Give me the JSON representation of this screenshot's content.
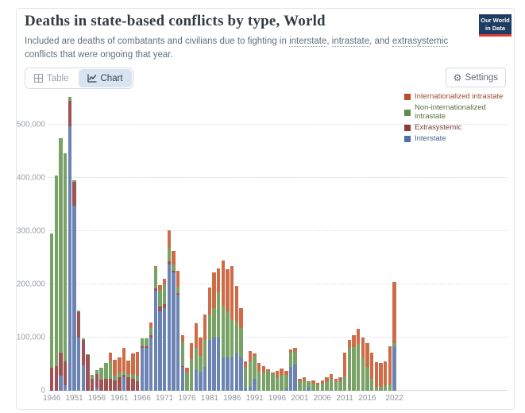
{
  "header": {
    "title": "Deaths in state-based conflicts by type, World",
    "subtitle": {
      "t1": "Included are deaths of combatants and civilians due to fighting in ",
      "link1": "interstate",
      "t2": ", ",
      "link2": "intrastate",
      "t3": ", and ",
      "link3": "extrasystemic",
      "t4": " conflicts that were ongoing that year."
    }
  },
  "logo": {
    "line1": "Our World",
    "line2": "in Data"
  },
  "toolbar": {
    "table_label": "Table",
    "chart_label": "Chart",
    "settings_label": "Settings"
  },
  "chart_data": {
    "type": "bar",
    "stacked": true,
    "title": "Deaths in state-based conflicts by type, World",
    "xlabel": "",
    "ylabel": "",
    "grid": "horizontal-dotted",
    "legend_position": "top-right",
    "ylim": [
      0,
      560000
    ],
    "ytick_values": [
      0,
      100000,
      200000,
      300000,
      400000,
      500000
    ],
    "ytick_labels": [
      "0",
      "100,000",
      "200,000",
      "300,000",
      "400,000",
      "500,000"
    ],
    "xtick_values": [
      1946,
      1951,
      1956,
      1961,
      1966,
      1971,
      1976,
      1981,
      1986,
      1991,
      1996,
      2001,
      2006,
      2011,
      2016,
      2022
    ],
    "years": [
      1946,
      1947,
      1948,
      1949,
      1950,
      1951,
      1952,
      1953,
      1954,
      1955,
      1956,
      1957,
      1958,
      1959,
      1960,
      1961,
      1962,
      1963,
      1964,
      1965,
      1966,
      1967,
      1968,
      1969,
      1970,
      1971,
      1972,
      1973,
      1974,
      1975,
      1976,
      1977,
      1978,
      1979,
      1980,
      1981,
      1982,
      1983,
      1984,
      1985,
      1986,
      1987,
      1988,
      1989,
      1990,
      1991,
      1992,
      1993,
      1994,
      1995,
      1996,
      1997,
      1998,
      1999,
      2000,
      2001,
      2002,
      2003,
      2004,
      2005,
      2006,
      2007,
      2008,
      2009,
      2010,
      2011,
      2012,
      2013,
      2014,
      2015,
      2016,
      2017,
      2018,
      2019,
      2020,
      2021,
      2022
    ],
    "series": [
      {
        "name": "Interstate",
        "color": "#6C84B4",
        "legend_color": "#4D70A5",
        "text_color": "#44618d",
        "values": [
          0,
          0,
          29000,
          10000,
          497000,
          348000,
          100000,
          48000,
          0,
          0,
          4000,
          0,
          0,
          0,
          0,
          0,
          26000,
          0,
          0,
          0,
          80000,
          80000,
          100000,
          188000,
          150000,
          155000,
          238000,
          222000,
          180000,
          45000,
          0,
          0,
          40000,
          35000,
          45000,
          95000,
          100000,
          100000,
          62000,
          62000,
          62000,
          70000,
          62000,
          5000,
          8000,
          22000,
          0,
          0,
          0,
          0,
          0,
          0,
          4000,
          45000,
          50000,
          0,
          2000,
          6000,
          0,
          0,
          0,
          0,
          2000,
          0,
          0,
          0,
          0,
          0,
          0,
          0,
          0,
          0,
          0,
          0,
          0,
          0,
          84000
        ]
      },
      {
        "name": "Extrasystemic",
        "color": "#9D5254",
        "legend_color": "#8E3B3E",
        "text_color": "#7e393c",
        "values": [
          44000,
          47000,
          43000,
          46000,
          48000,
          45000,
          48000,
          47000,
          67000,
          22000,
          27000,
          21000,
          22000,
          23000,
          20000,
          25000,
          4000,
          25000,
          22000,
          18000,
          4000,
          3000,
          4000,
          5000,
          8000,
          8000,
          5000,
          3000,
          3000,
          2000,
          0,
          0,
          0,
          0,
          0,
          0,
          0,
          0,
          0,
          0,
          0,
          0,
          0,
          0,
          0,
          0,
          0,
          0,
          0,
          0,
          0,
          0,
          0,
          0,
          0,
          0,
          0,
          0,
          0,
          0,
          0,
          0,
          0,
          0,
          0,
          0,
          0,
          0,
          0,
          0,
          0,
          0,
          0,
          0,
          0,
          0,
          0
        ]
      },
      {
        "name": "Non-internationalized intrastate",
        "color": "#79A266",
        "legend_color": "#5D8C4C",
        "text_color": "#51713f",
        "values": [
          252000,
          358000,
          403000,
          391000,
          8000,
          3000,
          3000,
          3000,
          2000,
          8000,
          8000,
          23000,
          31000,
          34000,
          8000,
          8000,
          7000,
          6000,
          8000,
          10000,
          15000,
          15000,
          14000,
          40000,
          32000,
          37000,
          24000,
          13000,
          12000,
          46000,
          35000,
          60000,
          40000,
          30000,
          50000,
          49000,
          55000,
          85000,
          98000,
          88000,
          73000,
          60000,
          56000,
          38000,
          47000,
          44000,
          38000,
          35000,
          38000,
          33000,
          25000,
          30000,
          26000,
          27000,
          25000,
          18000,
          17000,
          10000,
          14000,
          11000,
          14000,
          16000,
          20000,
          16000,
          20000,
          27000,
          80000,
          82000,
          88000,
          62000,
          45000,
          22000,
          8000,
          8000,
          10000,
          12000,
          6000
        ]
      },
      {
        "name": "Internationalized intrastate",
        "color": "#CE6C48",
        "legend_color": "#BD4B2B",
        "text_color": "#9d4b31",
        "values": [
          0,
          0,
          0,
          0,
          0,
          0,
          0,
          0,
          0,
          0,
          0,
          0,
          0,
          15000,
          30000,
          30000,
          43000,
          25000,
          40000,
          45000,
          0,
          0,
          10000,
          2000,
          8000,
          10000,
          35000,
          25000,
          30000,
          12000,
          9000,
          30000,
          47000,
          35000,
          49000,
          50000,
          67000,
          45000,
          85000,
          78000,
          100000,
          67000,
          37000,
          12000,
          20000,
          4000,
          14000,
          11000,
          2000,
          2000,
          12000,
          12000,
          8000,
          6000,
          5000,
          4000,
          6000,
          2000,
          6000,
          4000,
          6000,
          10000,
          10000,
          6000,
          6000,
          44000,
          15000,
          23000,
          28000,
          38000,
          45000,
          50000,
          46000,
          44000,
          45000,
          72000,
          115000
        ]
      }
    ]
  }
}
